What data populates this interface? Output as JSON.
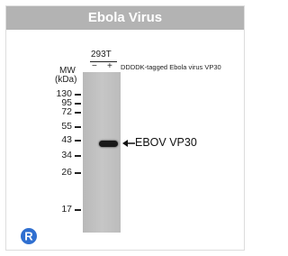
{
  "header": {
    "title": "Ebola Virus"
  },
  "sample": {
    "cell_line": "293T",
    "lanes": [
      "−",
      "+"
    ],
    "treatment": "DDDDK-tagged Ebola virus VP30"
  },
  "markers": {
    "label_line1": "MW",
    "label_line2": "(kDa)",
    "values": [
      "130",
      "95",
      "72",
      "55",
      "43",
      "34",
      "26",
      "17"
    ]
  },
  "band": {
    "label": "EBOV VP30"
  }
}
